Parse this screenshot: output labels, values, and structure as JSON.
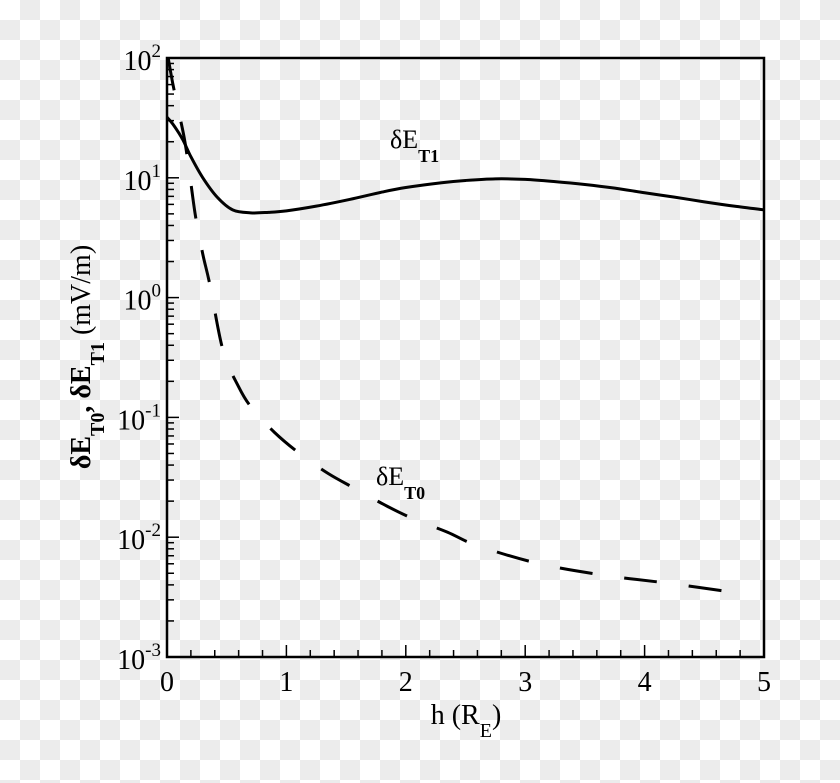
{
  "chart_data": {
    "type": "line",
    "xlabel": "h (R_E)",
    "xlabel_main": "h (R",
    "xlabel_sub": "E",
    "xlabel_close": ")",
    "ylabel": "δE_T0, δE_T1 (mV/m)",
    "ylabel_parts": [
      "δE",
      "T0",
      ", δE",
      "T1",
      " (mV/m)"
    ],
    "xlim": [
      0,
      5
    ],
    "ylim": [
      0.001,
      100
    ],
    "yscale": "log",
    "grid": false,
    "x_ticks": [
      "0",
      "1",
      "2",
      "3",
      "4",
      "5"
    ],
    "y_ticks": [
      {
        "base": "10",
        "exp": "-3"
      },
      {
        "base": "10",
        "exp": "-2"
      },
      {
        "base": "10",
        "exp": "-1"
      },
      {
        "base": "10",
        "exp": "0"
      },
      {
        "base": "10",
        "exp": "1"
      },
      {
        "base": "10",
        "exp": "2"
      }
    ],
    "series": [
      {
        "name": "δE_T1",
        "label_main": "δE",
        "label_sub": "T1",
        "style": "solid",
        "color": "#000000",
        "x": [
          0,
          0.05,
          0.13,
          0.2,
          0.3,
          0.42,
          0.55,
          0.7,
          0.85,
          1.0,
          1.25,
          1.53,
          1.8,
          2.0,
          2.3,
          2.5,
          2.75,
          3.0,
          3.25,
          3.5,
          3.75,
          4.0,
          4.25,
          4.5,
          4.75,
          5.0
        ],
        "y": [
          32,
          28,
          21,
          15,
          10,
          6.9,
          5.4,
          5.1,
          5.15,
          5.3,
          5.8,
          6.6,
          7.6,
          8.3,
          9.1,
          9.5,
          9.8,
          9.7,
          9.3,
          8.8,
          8.2,
          7.5,
          6.9,
          6.3,
          5.8,
          5.4
        ]
      },
      {
        "name": "δE_T0",
        "label_main": "δE",
        "label_sub": "T0",
        "style": "dashed",
        "color": "#000000",
        "x": [
          0.01,
          0.05,
          0.1,
          0.15,
          0.2,
          0.24,
          0.3,
          0.36,
          0.47,
          0.6,
          0.71,
          0.9,
          1.11,
          1.35,
          1.59,
          1.85,
          2.08,
          2.35,
          2.6,
          3.12,
          3.67,
          4.22,
          4.8
        ],
        "y": [
          100,
          60,
          35,
          20,
          9,
          4.7,
          2.3,
          1.27,
          0.36,
          0.18,
          0.12,
          0.075,
          0.05,
          0.034,
          0.025,
          0.018,
          0.014,
          0.011,
          0.0085,
          0.006,
          0.0048,
          0.0041,
          0.0034
        ]
      }
    ]
  }
}
